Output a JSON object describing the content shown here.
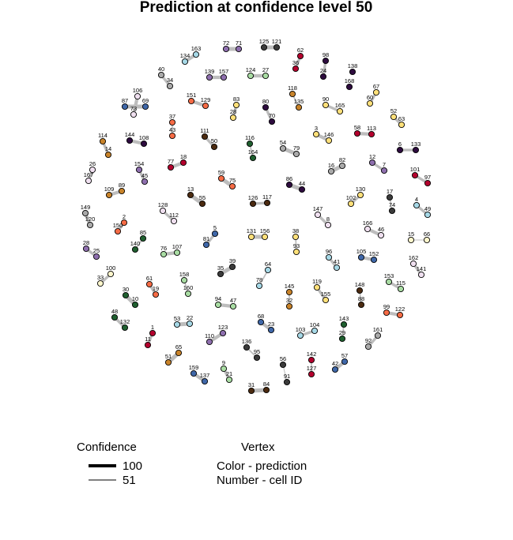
{
  "title": "Prediction at confidence level 50",
  "legend": {
    "confidence_title": "Confidence",
    "confidence_items": [
      {
        "label": "100",
        "strength": 100
      },
      {
        "label": "51",
        "strength": 51
      }
    ],
    "vertex_title": "Vertex",
    "vertex_items": [
      "Color - prediction",
      "Number - cell ID"
    ]
  },
  "colors": {
    "edge": "#bdbdbd",
    "node_stroke": "#000000"
  },
  "nodes": [
    {
      "id": "72",
      "color": "#8e6fae"
    },
    {
      "id": "71",
      "color": "#8e6fae"
    },
    {
      "id": "125",
      "color": "#3a3a3a"
    },
    {
      "id": "121",
      "color": "#3a3a3a"
    },
    {
      "id": "163",
      "color": "#a6d8e6"
    },
    {
      "id": "134",
      "color": "#a6d8e6"
    },
    {
      "id": "62",
      "color": "#b3002d"
    },
    {
      "id": "36",
      "color": "#b3002d"
    },
    {
      "id": "98",
      "color": "#2d0b3e"
    },
    {
      "id": "24",
      "color": "#2d0b3e"
    },
    {
      "id": "138",
      "color": "#2d0b3e"
    },
    {
      "id": "139",
      "color": "#8e6fae"
    },
    {
      "id": "157",
      "color": "#8e6fae"
    },
    {
      "id": "124",
      "color": "#a9dca3"
    },
    {
      "id": "27",
      "color": "#a9dca3"
    },
    {
      "id": "40",
      "color": "#aaaaaa"
    },
    {
      "id": "34",
      "color": "#aaaaaa"
    },
    {
      "id": "168",
      "color": "#2d0b3e"
    },
    {
      "id": "67",
      "color": "#ffe07a"
    },
    {
      "id": "60",
      "color": "#ffe07a"
    },
    {
      "id": "106",
      "color": "#f0e0f0"
    },
    {
      "id": "73",
      "color": "#f0e0f0"
    },
    {
      "id": "87",
      "color": "#3f67a8"
    },
    {
      "id": "69",
      "color": "#3f67a8"
    },
    {
      "id": "151",
      "color": "#f56b45"
    },
    {
      "id": "129",
      "color": "#f56b45"
    },
    {
      "id": "83",
      "color": "#ffe07a"
    },
    {
      "id": "28",
      "color": "#ffe07a"
    },
    {
      "id": "80",
      "color": "#2d0b3e"
    },
    {
      "id": "70",
      "color": "#2d0b3e"
    },
    {
      "id": "118",
      "color": "#c8832a"
    },
    {
      "id": "135",
      "color": "#c8832a"
    },
    {
      "id": "90",
      "color": "#ffe07a"
    },
    {
      "id": "165",
      "color": "#ffe07a"
    },
    {
      "id": "52",
      "color": "#ffe07a"
    },
    {
      "id": "63",
      "color": "#ffe07a"
    },
    {
      "id": "37",
      "color": "#f56b45"
    },
    {
      "id": "43",
      "color": "#f56b45"
    },
    {
      "id": "111",
      "color": "#4b2a10"
    },
    {
      "id": "50",
      "color": "#4b2a10"
    },
    {
      "id": "116",
      "color": "#1f5f2f"
    },
    {
      "id": "164",
      "color": "#1f5f2f"
    },
    {
      "id": "54",
      "color": "#aaaaaa"
    },
    {
      "id": "79",
      "color": "#aaaaaa"
    },
    {
      "id": "3",
      "color": "#ffe07a"
    },
    {
      "id": "146",
      "color": "#ffe07a"
    },
    {
      "id": "58",
      "color": "#b3002d"
    },
    {
      "id": "113",
      "color": "#b3002d"
    },
    {
      "id": "6",
      "color": "#2d0b3e"
    },
    {
      "id": "133",
      "color": "#2d0b3e"
    },
    {
      "id": "114",
      "color": "#c8832a"
    },
    {
      "id": "14",
      "color": "#c8832a"
    },
    {
      "id": "144",
      "color": "#2d0b3e"
    },
    {
      "id": "108",
      "color": "#2d0b3e"
    },
    {
      "id": "77",
      "color": "#b3002d"
    },
    {
      "id": "18",
      "color": "#b3002d"
    },
    {
      "id": "16",
      "color": "#aaaaaa"
    },
    {
      "id": "82",
      "color": "#aaaaaa"
    },
    {
      "id": "12",
      "color": "#8e6fae"
    },
    {
      "id": "7",
      "color": "#8e6fae"
    },
    {
      "id": "101",
      "color": "#b3002d"
    },
    {
      "id": "97",
      "color": "#b3002d"
    },
    {
      "id": "26",
      "color": "#f0e0f0"
    },
    {
      "id": "167",
      "color": "#f0e0f0"
    },
    {
      "id": "154",
      "color": "#8e6fae"
    },
    {
      "id": "45",
      "color": "#8e6fae"
    },
    {
      "id": "59",
      "color": "#f56b45"
    },
    {
      "id": "75",
      "color": "#f56b45"
    },
    {
      "id": "86",
      "color": "#2d0b3e"
    },
    {
      "id": "44",
      "color": "#2d0b3e"
    },
    {
      "id": "109",
      "color": "#c8832a"
    },
    {
      "id": "89",
      "color": "#c8832a"
    },
    {
      "id": "13",
      "color": "#4b2a10"
    },
    {
      "id": "55",
      "color": "#4b2a10"
    },
    {
      "id": "126",
      "color": "#4b2a10"
    },
    {
      "id": "117",
      "color": "#4b2a10"
    },
    {
      "id": "130",
      "color": "#ffe07a"
    },
    {
      "id": "102",
      "color": "#ffe07a"
    },
    {
      "id": "17",
      "color": "#3a3a3a"
    },
    {
      "id": "74",
      "color": "#3a3a3a"
    },
    {
      "id": "4",
      "color": "#a6d8e6"
    },
    {
      "id": "49",
      "color": "#a6d8e6"
    },
    {
      "id": "149",
      "color": "#aaaaaa"
    },
    {
      "id": "120",
      "color": "#aaaaaa"
    },
    {
      "id": "128",
      "color": "#f0e0f0"
    },
    {
      "id": "112",
      "color": "#f0e0f0"
    },
    {
      "id": "147",
      "color": "#f0e0f0"
    },
    {
      "id": "8",
      "color": "#f0e0f0"
    },
    {
      "id": "2",
      "color": "#f56b45"
    },
    {
      "id": "150",
      "color": "#f56b45"
    },
    {
      "id": "166",
      "color": "#f0e0f0"
    },
    {
      "id": "46",
      "color": "#f0e0f0"
    },
    {
      "id": "28b",
      "label": "28",
      "color": "#8e6fae"
    },
    {
      "id": "25",
      "color": "#8e6fae"
    },
    {
      "id": "85",
      "color": "#1f5f2f"
    },
    {
      "id": "140",
      "color": "#1f5f2f"
    },
    {
      "id": "5",
      "color": "#3f67a8"
    },
    {
      "id": "81",
      "color": "#3f67a8"
    },
    {
      "id": "131",
      "color": "#ffe07a"
    },
    {
      "id": "156",
      "color": "#ffe07a"
    },
    {
      "id": "38",
      "color": "#ffe07a"
    },
    {
      "id": "93",
      "color": "#ffe07a"
    },
    {
      "id": "15",
      "color": "#fff7cc"
    },
    {
      "id": "66",
      "color": "#fff7cc"
    },
    {
      "id": "76",
      "color": "#a9dca3"
    },
    {
      "id": "107",
      "color": "#a9dca3"
    },
    {
      "id": "96",
      "color": "#a6d8e6"
    },
    {
      "id": "41",
      "color": "#a6d8e6"
    },
    {
      "id": "105",
      "color": "#3f67a8"
    },
    {
      "id": "152",
      "color": "#3f67a8"
    },
    {
      "id": "162",
      "color": "#f0e0f0"
    },
    {
      "id": "141",
      "color": "#f0e0f0"
    },
    {
      "id": "39",
      "color": "#3a3a3a"
    },
    {
      "id": "35",
      "color": "#3a3a3a"
    },
    {
      "id": "64",
      "color": "#a6d8e6"
    },
    {
      "id": "78",
      "color": "#a6d8e6"
    },
    {
      "id": "100",
      "color": "#fff7cc"
    },
    {
      "id": "33",
      "color": "#fff7cc"
    },
    {
      "id": "61",
      "color": "#f56b45"
    },
    {
      "id": "19",
      "color": "#f56b45"
    },
    {
      "id": "158",
      "color": "#a9dca3"
    },
    {
      "id": "160",
      "color": "#a9dca3"
    },
    {
      "id": "145",
      "color": "#c8832a"
    },
    {
      "id": "32",
      "color": "#c8832a"
    },
    {
      "id": "119",
      "color": "#ffe07a"
    },
    {
      "id": "155",
      "color": "#ffe07a"
    },
    {
      "id": "148",
      "color": "#4b2a10"
    },
    {
      "id": "88",
      "color": "#4b2a10"
    },
    {
      "id": "153",
      "color": "#a9dca3"
    },
    {
      "id": "115",
      "color": "#a9dca3"
    },
    {
      "id": "30",
      "color": "#1f5f2f"
    },
    {
      "id": "10",
      "color": "#1f5f2f"
    },
    {
      "id": "94",
      "color": "#a9dca3"
    },
    {
      "id": "47",
      "color": "#a9dca3"
    },
    {
      "id": "99",
      "color": "#f56b45"
    },
    {
      "id": "122",
      "color": "#f56b45"
    },
    {
      "id": "48",
      "color": "#1f5f2f"
    },
    {
      "id": "132",
      "color": "#1f5f2f"
    },
    {
      "id": "53",
      "color": "#a6d8e6"
    },
    {
      "id": "22",
      "color": "#a6d8e6"
    },
    {
      "id": "68",
      "color": "#3f67a8"
    },
    {
      "id": "23",
      "color": "#3f67a8"
    },
    {
      "id": "103",
      "color": "#a6d8e6"
    },
    {
      "id": "104",
      "color": "#a6d8e6"
    },
    {
      "id": "143",
      "color": "#1f5f2f"
    },
    {
      "id": "29",
      "color": "#1f5f2f"
    },
    {
      "id": "1",
      "color": "#b3002d"
    },
    {
      "id": "11",
      "color": "#b3002d"
    },
    {
      "id": "123",
      "color": "#8e6fae"
    },
    {
      "id": "110",
      "color": "#8e6fae"
    },
    {
      "id": "161",
      "color": "#aaaaaa"
    },
    {
      "id": "92",
      "color": "#aaaaaa"
    },
    {
      "id": "65",
      "color": "#c8832a"
    },
    {
      "id": "51",
      "color": "#c8832a"
    },
    {
      "id": "136",
      "color": "#3a3a3a"
    },
    {
      "id": "95",
      "color": "#3a3a3a"
    },
    {
      "id": "56",
      "color": "#3a3a3a"
    },
    {
      "id": "91",
      "color": "#3a3a3a"
    },
    {
      "id": "142",
      "color": "#b3002d"
    },
    {
      "id": "127",
      "color": "#b3002d"
    },
    {
      "id": "57",
      "color": "#3f67a8"
    },
    {
      "id": "42",
      "color": "#3f67a8"
    },
    {
      "id": "9",
      "color": "#a9dca3"
    },
    {
      "id": "21",
      "color": "#a9dca3"
    },
    {
      "id": "159",
      "color": "#3f67a8"
    },
    {
      "id": "137",
      "color": "#3f67a8"
    },
    {
      "id": "31",
      "color": "#4b2a10"
    },
    {
      "id": "84",
      "color": "#4b2a10"
    }
  ],
  "edges": [
    [
      "72",
      "71",
      100
    ],
    [
      "125",
      "121",
      100
    ],
    [
      "163",
      "134",
      90
    ],
    [
      "62",
      "36",
      80
    ],
    [
      "98",
      "24",
      80
    ],
    [
      "139",
      "157",
      90
    ],
    [
      "124",
      "27",
      90
    ],
    [
      "40",
      "34",
      80
    ],
    [
      "67",
      "60",
      80
    ],
    [
      "106",
      "73",
      90
    ],
    [
      "87",
      "69",
      100
    ],
    [
      "151",
      "129",
      90
    ],
    [
      "83",
      "28",
      80
    ],
    [
      "80",
      "70",
      80
    ],
    [
      "118",
      "135",
      60
    ],
    [
      "90",
      "165",
      80
    ],
    [
      "52",
      "63",
      80
    ],
    [
      "37",
      "43",
      60
    ],
    [
      "111",
      "50",
      80
    ],
    [
      "116",
      "164",
      60
    ],
    [
      "54",
      "79",
      100
    ],
    [
      "3",
      "146",
      90
    ],
    [
      "58",
      "113",
      90
    ],
    [
      "6",
      "133",
      80
    ],
    [
      "114",
      "14",
      80
    ],
    [
      "144",
      "108",
      90
    ],
    [
      "77",
      "18",
      90
    ],
    [
      "16",
      "82",
      100
    ],
    [
      "12",
      "7",
      80
    ],
    [
      "101",
      "97",
      80
    ],
    [
      "26",
      "167",
      80
    ],
    [
      "154",
      "45",
      80
    ],
    [
      "59",
      "75",
      100
    ],
    [
      "86",
      "44",
      100
    ],
    [
      "109",
      "89",
      90
    ],
    [
      "13",
      "55",
      100
    ],
    [
      "126",
      "117",
      80
    ],
    [
      "130",
      "102",
      80
    ],
    [
      "17",
      "74",
      60
    ],
    [
      "4",
      "49",
      80
    ],
    [
      "149",
      "120",
      90
    ],
    [
      "128",
      "112",
      80
    ],
    [
      "147",
      "8",
      80
    ],
    [
      "2",
      "150",
      80
    ],
    [
      "166",
      "46",
      90
    ],
    [
      "28b",
      "25",
      80
    ],
    [
      "85",
      "140",
      60
    ],
    [
      "5",
      "81",
      80
    ],
    [
      "131",
      "156",
      100
    ],
    [
      "38",
      "93",
      60
    ],
    [
      "15",
      "66",
      51
    ],
    [
      "76",
      "107",
      90
    ],
    [
      "96",
      "41",
      80
    ],
    [
      "105",
      "152",
      90
    ],
    [
      "162",
      "141",
      80
    ],
    [
      "39",
      "35",
      100
    ],
    [
      "64",
      "78",
      60
    ],
    [
      "100",
      "33",
      80
    ],
    [
      "61",
      "19",
      80
    ],
    [
      "158",
      "160",
      60
    ],
    [
      "145",
      "32",
      60
    ],
    [
      "119",
      "155",
      80
    ],
    [
      "148",
      "88",
      60
    ],
    [
      "153",
      "115",
      80
    ],
    [
      "30",
      "10",
      100
    ],
    [
      "94",
      "47",
      90
    ],
    [
      "99",
      "122",
      90
    ],
    [
      "48",
      "132",
      80
    ],
    [
      "53",
      "22",
      100
    ],
    [
      "68",
      "23",
      90
    ],
    [
      "103",
      "104",
      80
    ],
    [
      "143",
      "29",
      60
    ],
    [
      "1",
      "11",
      80
    ],
    [
      "123",
      "110",
      90
    ],
    [
      "161",
      "92",
      80
    ],
    [
      "65",
      "51",
      100
    ],
    [
      "136",
      "95",
      60
    ],
    [
      "56",
      "91",
      51
    ],
    [
      "142",
      "127",
      60
    ],
    [
      "57",
      "42",
      90
    ],
    [
      "9",
      "21",
      80
    ],
    [
      "159",
      "137",
      90
    ],
    [
      "31",
      "84",
      100
    ]
  ]
}
